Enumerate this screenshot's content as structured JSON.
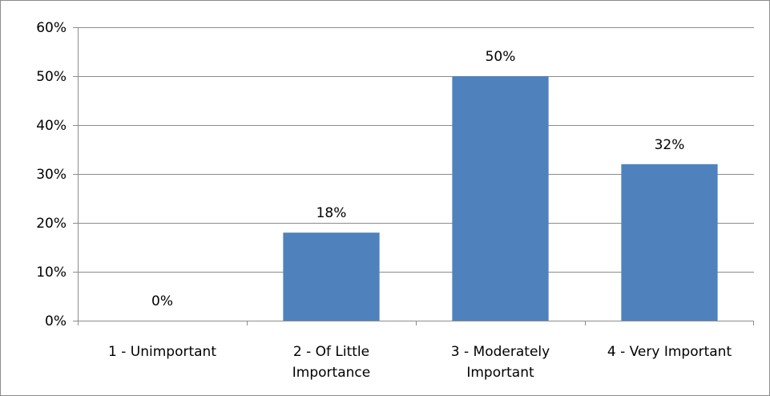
{
  "chart_data": {
    "type": "bar",
    "title": "",
    "xlabel": "",
    "ylabel": "",
    "categories": [
      [
        "1 - Unimportant"
      ],
      [
        "2 - Of Little",
        "Importance"
      ],
      [
        "3 - Moderately",
        "Important"
      ],
      [
        "4 - Very Important"
      ]
    ],
    "values": [
      0,
      18,
      50,
      32
    ],
    "data_labels": [
      "0%",
      "18%",
      "50%",
      "32%"
    ],
    "ylim": [
      0,
      60
    ],
    "yticks": [
      0,
      10,
      20,
      30,
      40,
      50,
      60
    ],
    "ytick_labels": [
      "0%",
      "10%",
      "20%",
      "30%",
      "40%",
      "50%",
      "60%"
    ],
    "grid": true,
    "legend": "none",
    "bar_color": "#4f81bd",
    "grid_color": "#8c8c8c"
  }
}
